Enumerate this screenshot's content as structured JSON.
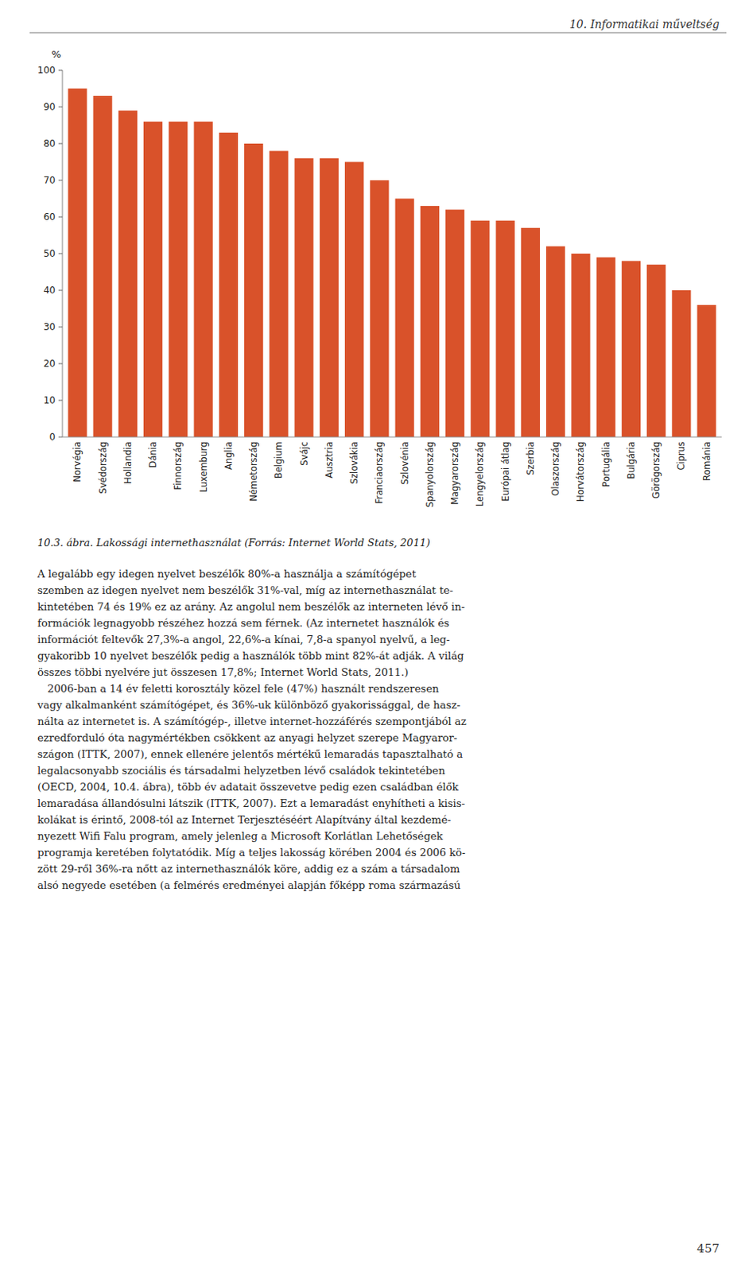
{
  "chart_data": {
    "type": "bar",
    "title": "10.3. ábra. Lakossági internethasználat (Forrás: Internet World Stats, 2011)",
    "y_label": "%",
    "categories": [
      "Norvégia",
      "Svédország",
      "Hollandia",
      "Dánia",
      "Finnország",
      "Luxemburg",
      "Anglia",
      "Németország",
      "Belgium",
      "Svájc",
      "Ausztria",
      "Szlovákia",
      "Franciaország",
      "Szlovénia",
      "Spanyolország",
      "Magyarország",
      "Lengyelország",
      "Európai átlag",
      "Szerbia",
      "Olaszország",
      "Horvátország",
      "Portugália",
      "Bulgária",
      "Görögország",
      "Ciprus",
      "Románia"
    ],
    "values": [
      95,
      93,
      89,
      86,
      86,
      86,
      83,
      80,
      78,
      76,
      76,
      75,
      70,
      65,
      63,
      62,
      59,
      59,
      57,
      52,
      50,
      49,
      48,
      47,
      40,
      36
    ],
    "color": "#d9522a",
    "ylim": [
      0,
      100
    ],
    "yticks": [
      0,
      10,
      20,
      30,
      40,
      50,
      60,
      70,
      80,
      90,
      100
    ],
    "grid": false,
    "annotations": [
      "10. Informatikai műveltség",
      "A legalább egy idegen nyelvet beszélők 80%-a használja a számítógépet",
      "szemben az idegen nyelvet nem beszélők 31%-val, míg az internethasználat te-",
      "kintetében 74 és 19% ez az arány. Az angolul nem beszélők az interneten lévő in-",
      "formációk legnagyobb részéhez hozzá sem férnek. (Az internetet használók és",
      "információt feltevők 27,3%-a angol, 22,6%-a kínai, 7,8-a spanyol nyelvű, a leg-",
      "gyakoribb 10 nyelvet beszélők pedig a használók több mint 82%-át adják. A világ",
      "összes többi nyelvére jut összesen 17,8%; Internet World Stats, 2011.)",
      "   2006-ban a 14 év feletti korosztály közel fele (47%) használt rendszeresen",
      "vagy alkalmanként számítógépet, és 36%-uk különböző gyakorissággal, de hasz-",
      "nálta az internetet is. A számítógép-, illetve internet-hozzáférés szempontjából az",
      "ezredforduló óta nagymértékben csökkent az anyagi helyzet szerepe Magyaror-",
      "szágon (ITTK, 2007), ennek ellenére jelentős mértékű lemaradás tapasztalható a",
      "legalacsonyabb szociális és társadalmi helyzetben lévő családok tekintetében",
      "(OECD, 2004, 10.4. ábra), több év adatait összevetve pedig ezen családban élők",
      "lemaradása állandósulni látszik (ITTK, 2007). Ezt a lemaradást enyhítheti a kisis-",
      "kolákat is érintő, 2008-tól az Internet Terjesztéséért Alapítvány által kezdemé-",
      "nyezett Wifi Falu program, amely jelenleg a Microsoft Korlátlan Lehetőségek",
      "programja keretében folytatódik. Míg a teljes lakosság körében 2004 és 2006 kö-",
      "zött 29-ről 36%-ra nőtt az internethasználók köre, addig ez a szám a társadalom",
      "alsó negyede esetében (a felmérés eredményei alapján főképp roma származású",
      "457"
    ]
  }
}
